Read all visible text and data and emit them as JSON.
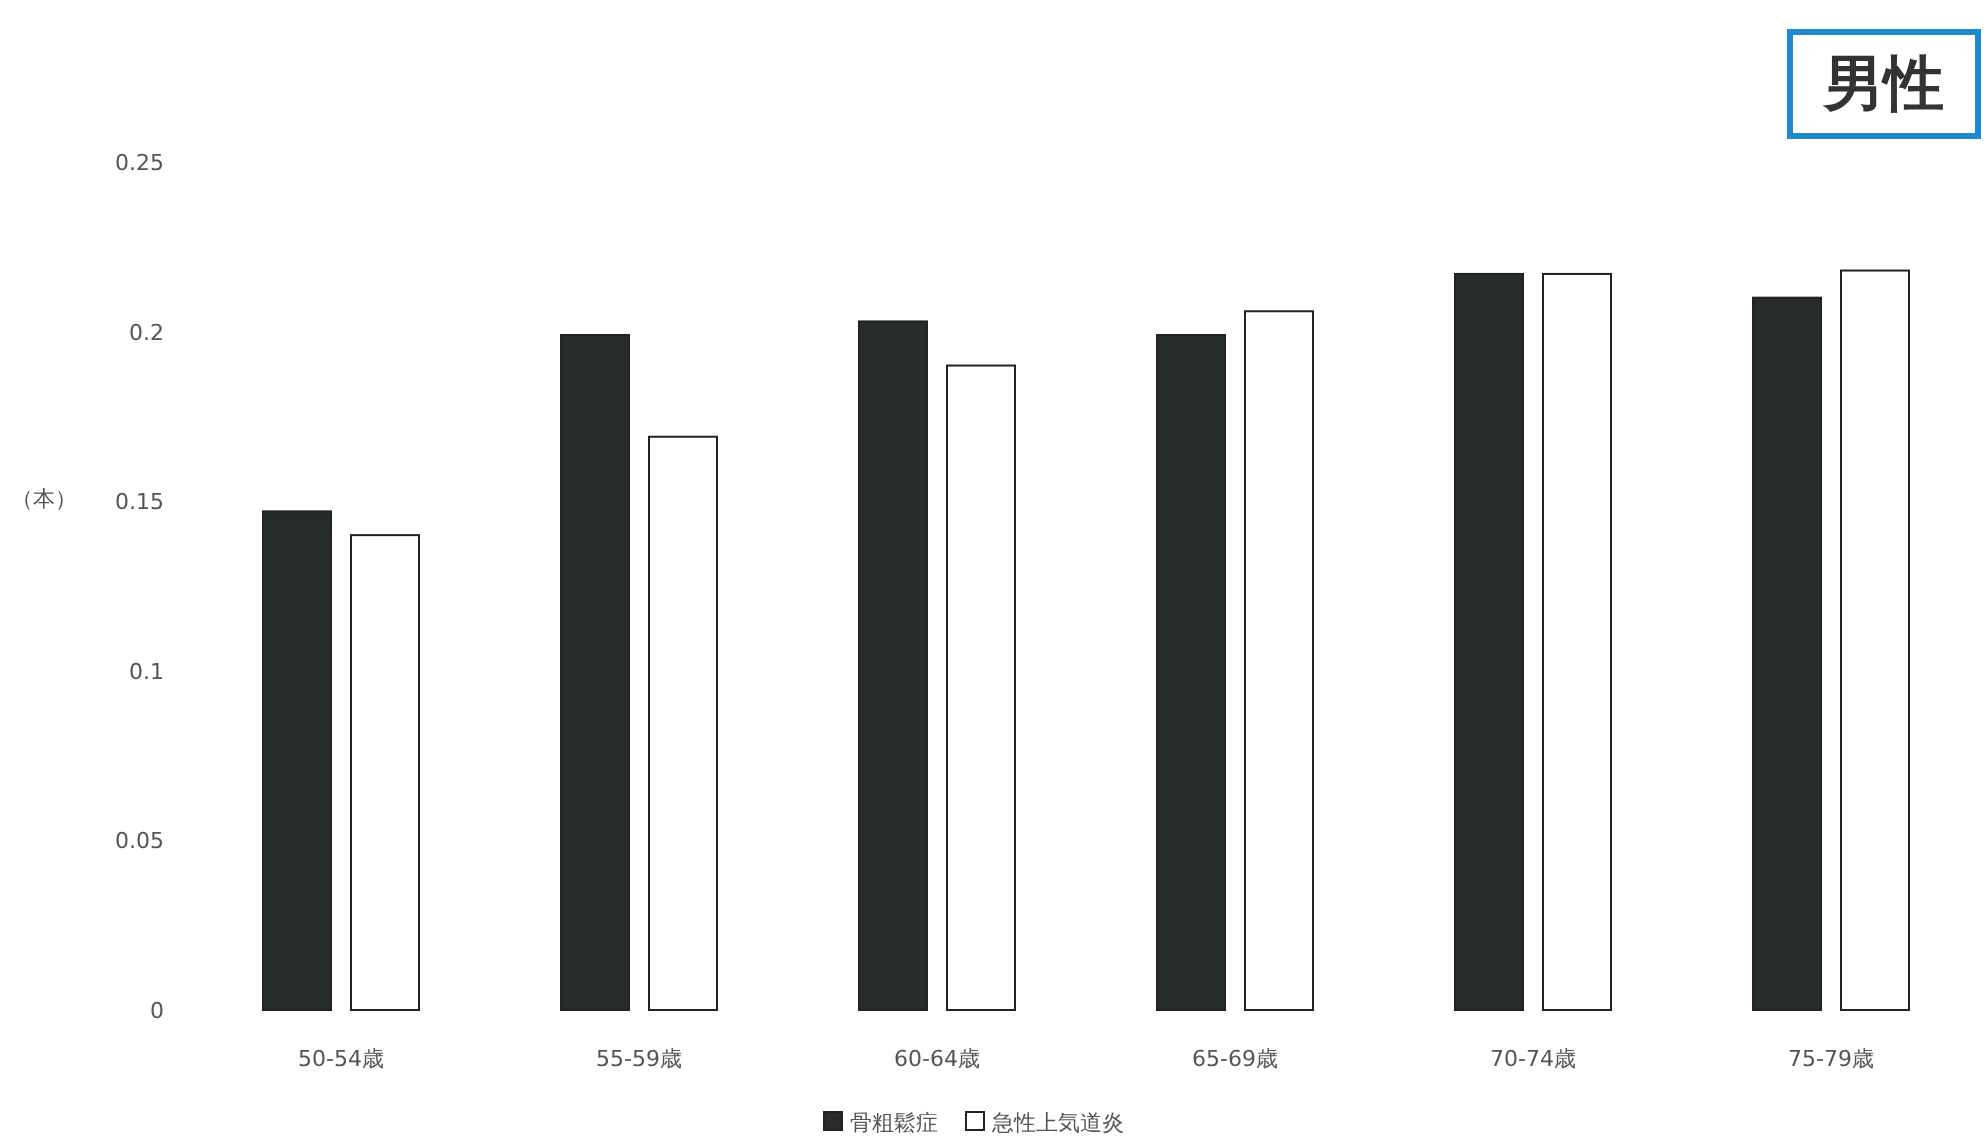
{
  "chart_data": {
    "type": "bar",
    "ylabel": "（本）",
    "annotations": [
      "男性"
    ],
    "categories": [
      "50-54歳",
      "55-59歳",
      "60-64歳",
      "65-69歳",
      "70-74歳",
      "75-79歳"
    ],
    "series": [
      {
        "name": "骨粗鬆症",
        "color": "#262c2a",
        "values": [
          0.147,
          0.199,
          0.203,
          0.199,
          0.217,
          0.21
        ]
      },
      {
        "name": "急性上気道炎",
        "color": "#ffffff",
        "values": [
          0.14,
          0.169,
          0.19,
          0.206,
          0.217,
          0.218
        ]
      }
    ],
    "ylim": [
      0,
      0.25
    ],
    "yticks": [
      0,
      0.05,
      0.1,
      0.15,
      0.2,
      0.25
    ],
    "grid": false,
    "legend": "bottom"
  }
}
